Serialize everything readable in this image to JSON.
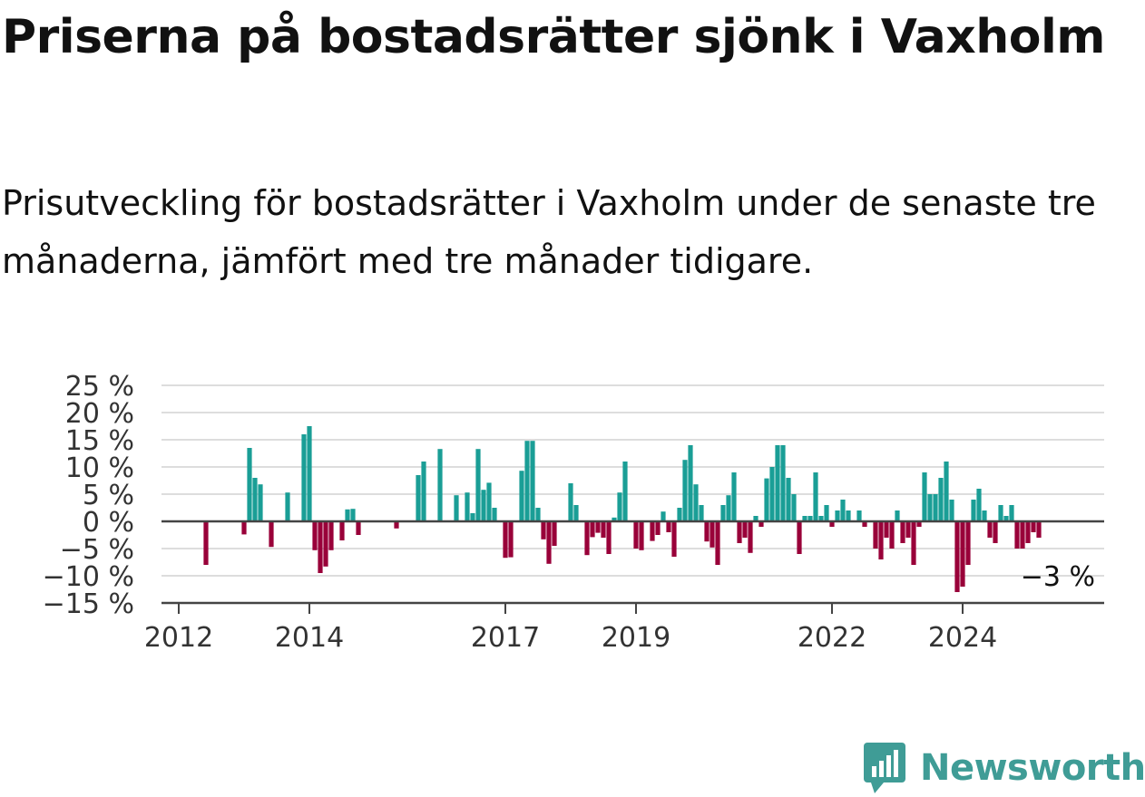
{
  "title": "Priserna på bostadsrätter sjönk i Vaxholm",
  "subtitle": "Prisutveckling för bostadsrätter i Vaxholm under de senaste tre månaderna, jämfört med tre månader tidigare.",
  "brand": {
    "name": "Newsworthy",
    "color": "#3f9c96",
    "icon": "newsworthy-logo-icon"
  },
  "colors": {
    "positive": "#1a9e96",
    "negative": "#990039",
    "grid": "#dddddd",
    "axis": "#444444"
  },
  "chart_data": {
    "type": "bar",
    "ylim": [
      -15,
      25
    ],
    "yticks": [
      25,
      20,
      15,
      10,
      5,
      0,
      -5,
      -10,
      -15
    ],
    "ytick_labels": [
      "25 %",
      "20 %",
      "15 %",
      "10 %",
      "5 %",
      "0 %",
      "−5 %",
      "−10 %",
      "−15 %"
    ],
    "xlim": [
      "2012-01",
      "2025-11"
    ],
    "xticks": [
      {
        "label": "2012",
        "date": "2012-01"
      },
      {
        "label": "2014",
        "date": "2014-01"
      },
      {
        "label": "2017",
        "date": "2017-01"
      },
      {
        "label": "2019",
        "date": "2019-01"
      },
      {
        "label": "2022",
        "date": "2022-01"
      },
      {
        "label": "2024",
        "date": "2024-01"
      }
    ],
    "grid": true,
    "last_value_label": "−3 %",
    "series": [
      {
        "values": [
          [
            "2012-06",
            -8.0
          ],
          [
            "2013-01",
            -2.4
          ],
          [
            "2013-02",
            13.5
          ],
          [
            "2013-03",
            8.0
          ],
          [
            "2013-04",
            6.8
          ],
          [
            "2013-06",
            -4.7
          ],
          [
            "2013-09",
            5.3
          ],
          [
            "2013-12",
            16.0
          ],
          [
            "2014-01",
            17.5
          ],
          [
            "2014-02",
            -5.3
          ],
          [
            "2014-03",
            -9.5
          ],
          [
            "2014-04",
            -8.3
          ],
          [
            "2014-05",
            -5.3
          ],
          [
            "2014-07",
            -3.5
          ],
          [
            "2014-08",
            2.2
          ],
          [
            "2014-09",
            2.3
          ],
          [
            "2014-10",
            -2.5
          ],
          [
            "2015-05",
            -1.3
          ],
          [
            "2015-09",
            8.5
          ],
          [
            "2015-10",
            11.0
          ],
          [
            "2016-01",
            13.3
          ],
          [
            "2016-04",
            4.8
          ],
          [
            "2016-06",
            5.3
          ],
          [
            "2016-07",
            1.5
          ],
          [
            "2016-08",
            13.3
          ],
          [
            "2016-09",
            5.8
          ],
          [
            "2016-10",
            7.1
          ],
          [
            "2016-11",
            2.5
          ],
          [
            "2017-01",
            -6.7
          ],
          [
            "2017-02",
            -6.6
          ],
          [
            "2017-04",
            9.3
          ],
          [
            "2017-05",
            14.8
          ],
          [
            "2017-06",
            14.8
          ],
          [
            "2017-07",
            2.5
          ],
          [
            "2017-08",
            -3.3
          ],
          [
            "2017-09",
            -7.8
          ],
          [
            "2017-10",
            -4.5
          ],
          [
            "2018-01",
            7.0
          ],
          [
            "2018-02",
            3.0
          ],
          [
            "2018-04",
            -6.2
          ],
          [
            "2018-05",
            -2.9
          ],
          [
            "2018-06",
            -2.1
          ],
          [
            "2018-07",
            -3.0
          ],
          [
            "2018-08",
            -6.0
          ],
          [
            "2018-09",
            0.7
          ],
          [
            "2018-10",
            5.3
          ],
          [
            "2018-11",
            11.0
          ],
          [
            "2019-01",
            -5.0
          ],
          [
            "2019-02",
            -5.3
          ],
          [
            "2019-04",
            -3.6
          ],
          [
            "2019-05",
            -2.5
          ],
          [
            "2019-06",
            1.8
          ],
          [
            "2019-07",
            -2.0
          ],
          [
            "2019-08",
            -6.5
          ],
          [
            "2019-09",
            2.5
          ],
          [
            "2019-10",
            11.3
          ],
          [
            "2019-11",
            14.0
          ],
          [
            "2019-12",
            6.8
          ],
          [
            "2020-01",
            3.0
          ],
          [
            "2020-02",
            -3.7
          ],
          [
            "2020-03",
            -4.8
          ],
          [
            "2020-04",
            -8.0
          ],
          [
            "2020-05",
            3.0
          ],
          [
            "2020-06",
            4.8
          ],
          [
            "2020-07",
            9.0
          ],
          [
            "2020-08",
            -4.0
          ],
          [
            "2020-09",
            -3.0
          ],
          [
            "2020-10",
            -5.8
          ],
          [
            "2020-11",
            1.0
          ],
          [
            "2020-12",
            -1.0
          ],
          [
            "2021-01",
            7.9
          ],
          [
            "2021-02",
            10.0
          ],
          [
            "2021-03",
            14.0
          ],
          [
            "2021-04",
            14.0
          ],
          [
            "2021-05",
            8.0
          ],
          [
            "2021-06",
            5.0
          ],
          [
            "2021-07",
            -6.0
          ],
          [
            "2021-08",
            1.0
          ],
          [
            "2021-09",
            1.0
          ],
          [
            "2021-10",
            9.0
          ],
          [
            "2021-11",
            1.0
          ],
          [
            "2021-12",
            3.0
          ],
          [
            "2022-01",
            -1.0
          ],
          [
            "2022-02",
            2.0
          ],
          [
            "2022-03",
            4.0
          ],
          [
            "2022-04",
            2.0
          ],
          [
            "2022-06",
            2.0
          ],
          [
            "2022-07",
            -1.0
          ],
          [
            "2022-09",
            -5.0
          ],
          [
            "2022-10",
            -7.0
          ],
          [
            "2022-11",
            -3.0
          ],
          [
            "2022-12",
            -5.0
          ],
          [
            "2023-01",
            2.0
          ],
          [
            "2023-02",
            -4.0
          ],
          [
            "2023-03",
            -3.0
          ],
          [
            "2023-04",
            -8.0
          ],
          [
            "2023-05",
            -1.0
          ],
          [
            "2023-06",
            9.0
          ],
          [
            "2023-07",
            5.0
          ],
          [
            "2023-08",
            5.0
          ],
          [
            "2023-09",
            8.0
          ],
          [
            "2023-10",
            11.0
          ],
          [
            "2023-11",
            4.0
          ],
          [
            "2023-12",
            -13.0
          ],
          [
            "2024-01",
            -12.0
          ],
          [
            "2024-02",
            -8.0
          ],
          [
            "2024-03",
            4.0
          ],
          [
            "2024-04",
            6.0
          ],
          [
            "2024-05",
            2.0
          ],
          [
            "2024-06",
            -3.0
          ],
          [
            "2024-07",
            -4.0
          ],
          [
            "2024-08",
            3.0
          ],
          [
            "2024-09",
            1.0
          ],
          [
            "2024-10",
            3.0
          ],
          [
            "2024-11",
            -5.0
          ],
          [
            "2024-12",
            -5.0
          ],
          [
            "2025-01",
            -4.0
          ],
          [
            "2025-02",
            -2.0
          ],
          [
            "2025-03",
            -3.0
          ]
        ]
      }
    ]
  }
}
